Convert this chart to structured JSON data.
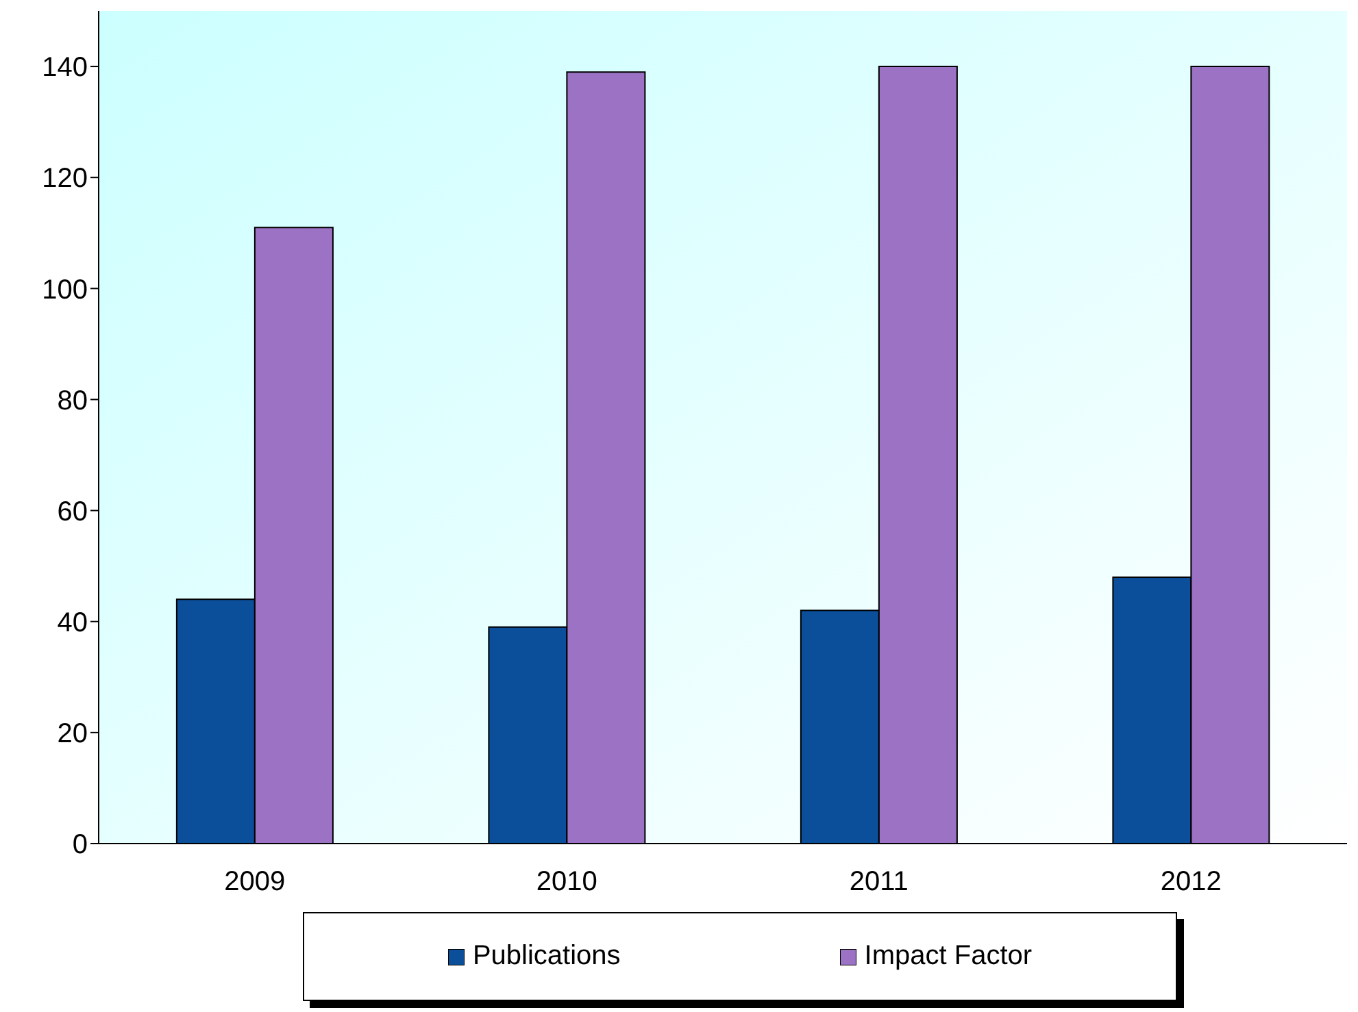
{
  "chart_data": {
    "type": "bar",
    "categories": [
      "2009",
      "2010",
      "2011",
      "2012"
    ],
    "series": [
      {
        "name": "Publications",
        "color": "#0b4f9a",
        "values": [
          44,
          39,
          42,
          48
        ]
      },
      {
        "name": "Impact Factor",
        "color": "#9b72c4",
        "values": [
          111,
          139,
          140,
          140
        ]
      }
    ],
    "ylim": [
      0,
      150
    ],
    "yticks": [
      0,
      20,
      40,
      60,
      80,
      100,
      120,
      140
    ],
    "grid": false,
    "legend": "bottom"
  }
}
